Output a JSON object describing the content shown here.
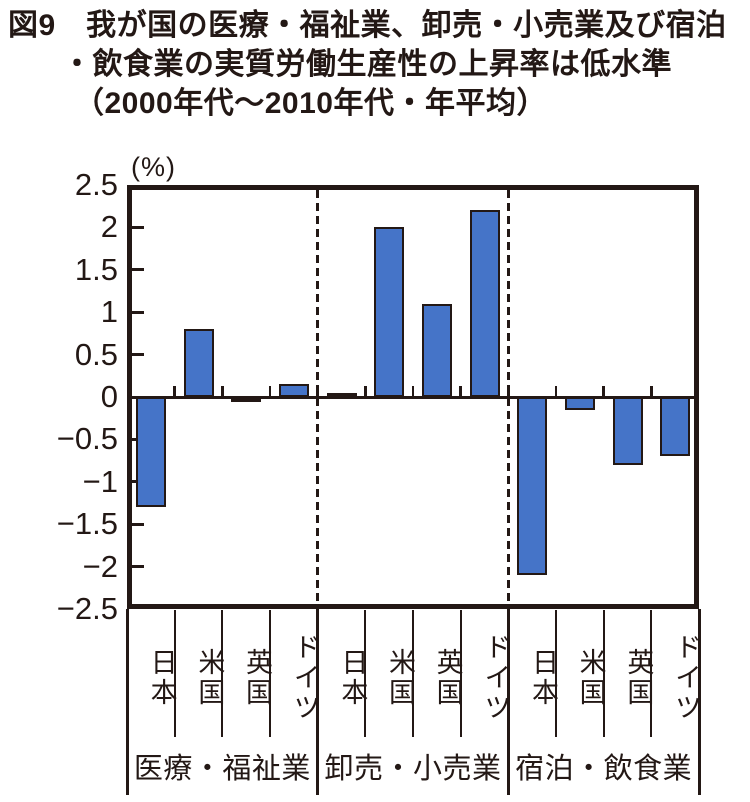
{
  "figure": {
    "title_line1": "図9　我が国の医療・福祉業、卸売・小売業及び宿泊",
    "title_line2": "・飲食業の実質労働生産性の上昇率は低水準",
    "title_line3": "（2000年代～2010年代・年平均）"
  },
  "chart_data": {
    "type": "bar",
    "title": "図9 我が国の医療・福祉業、卸売・小売業及び宿泊・飲食業の実質労働生産性の上昇率は低水準（2000年代～2010年代・年平均）",
    "unit_label": "(%)",
    "ylim": [
      -2.5,
      2.5
    ],
    "yticks": [
      2.5,
      2,
      1.5,
      1,
      0.5,
      0,
      -0.5,
      -1,
      -1.5,
      -2,
      -2.5
    ],
    "ytick_labels": [
      "2.5",
      "2",
      "1.5",
      "1",
      "0.5",
      "0",
      "−0.5",
      "−1",
      "−1.5",
      "−2",
      "−2.5"
    ],
    "grid": false,
    "legend": "none",
    "bar_color": "#4574C8",
    "outline_color": "#231815",
    "group_separator_style": "dashed",
    "groups": [
      {
        "label": "医療・福祉業",
        "slug": "medical-welfare",
        "categories": [
          "日本",
          "米国",
          "英国",
          "ドイツ"
        ],
        "category_slugs": [
          "japan",
          "us",
          "uk",
          "germany"
        ],
        "values": [
          -1.3,
          0.8,
          -0.03,
          0.15
        ]
      },
      {
        "label": "卸売・小売業",
        "slug": "wholesale-retail",
        "categories": [
          "日本",
          "米国",
          "英国",
          "ドイツ"
        ],
        "category_slugs": [
          "japan",
          "us",
          "uk",
          "germany"
        ],
        "values": [
          0.02,
          2.0,
          1.1,
          2.2
        ]
      },
      {
        "label": "宿泊・飲食業",
        "slug": "accommodation-food",
        "categories": [
          "日本",
          "米国",
          "英国",
          "ドイツ"
        ],
        "category_slugs": [
          "japan",
          "us",
          "uk",
          "germany"
        ],
        "values": [
          -2.1,
          -0.15,
          -0.8,
          -0.7
        ]
      }
    ]
  }
}
